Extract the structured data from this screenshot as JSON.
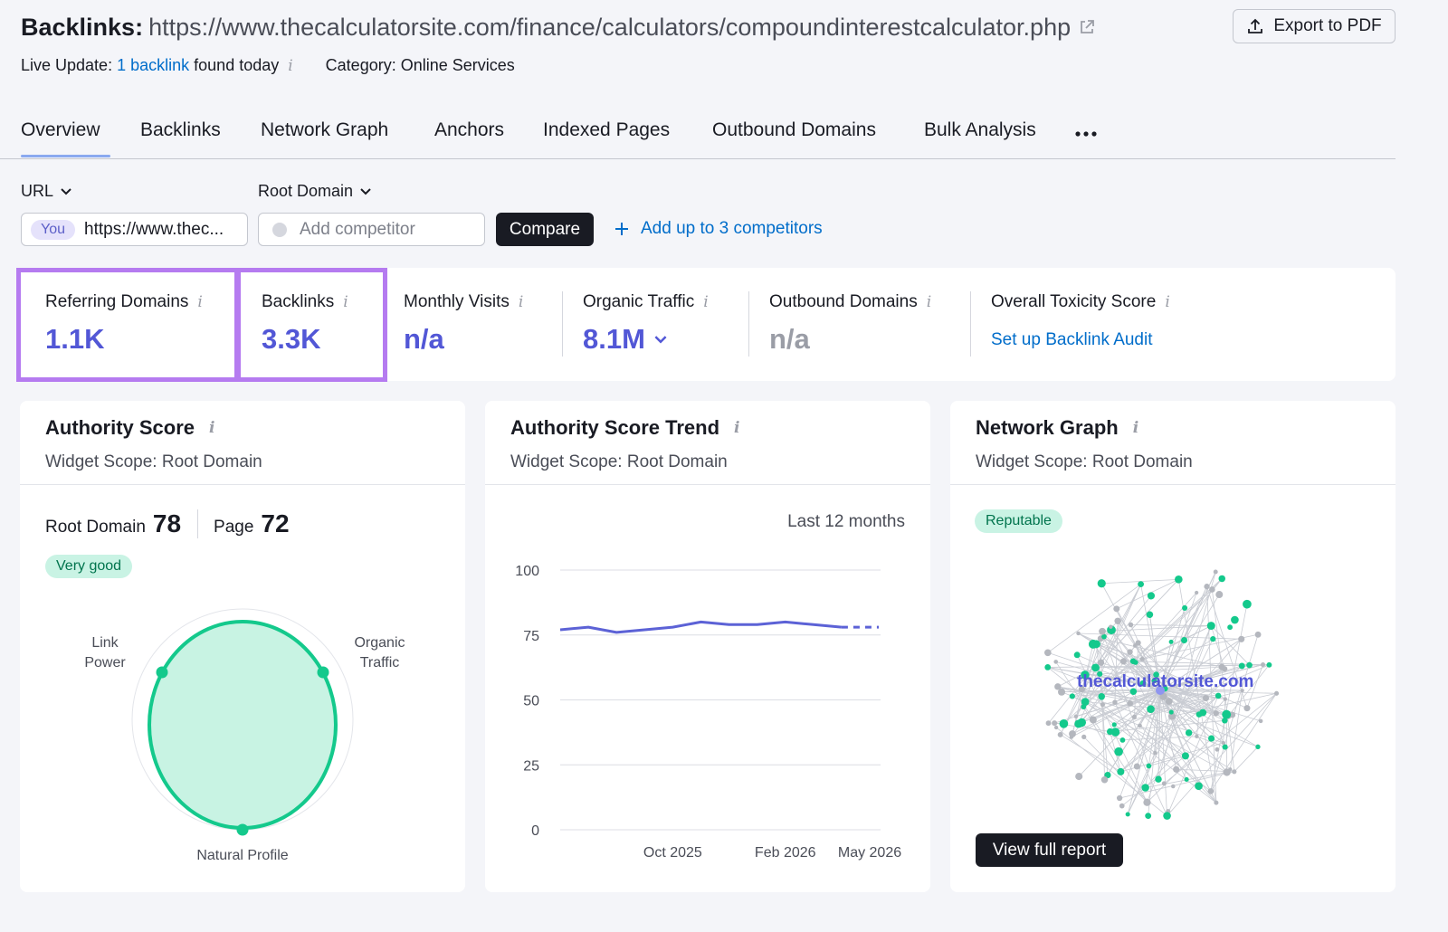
{
  "header": {
    "title_label": "Backlinks:",
    "url": "https://www.thecalculatorsite.com/finance/calculators/compoundinterestcalculator.php",
    "export_label": "Export to PDF",
    "live_update_prefix": "Live Update:",
    "live_update_link": "1 backlink",
    "live_update_suffix": "found today",
    "category": "Category: Online Services"
  },
  "tabs": [
    "Overview",
    "Backlinks",
    "Network Graph",
    "Anchors",
    "Indexed Pages",
    "Outbound Domains",
    "Bulk Analysis"
  ],
  "active_tab": "Overview",
  "filters": {
    "url_dropdown": "URL",
    "root_domain_dropdown": "Root Domain",
    "you_badge": "You",
    "your_url": "https://www.thec...",
    "competitor_placeholder": "Add competitor",
    "compare_label": "Compare",
    "add_competitors_label": "Add up to 3 competitors"
  },
  "metrics": {
    "referring_domains": {
      "label": "Referring Domains",
      "value": "1.1K"
    },
    "backlinks": {
      "label": "Backlinks",
      "value": "3.3K"
    },
    "monthly_visits": {
      "label": "Monthly Visits",
      "value": "n/a"
    },
    "organic_traffic": {
      "label": "Organic Traffic",
      "value": "8.1M"
    },
    "outbound_domains": {
      "label": "Outbound Domains",
      "value": "n/a"
    },
    "toxicity": {
      "label": "Overall Toxicity Score",
      "link": "Set up Backlink Audit"
    }
  },
  "authority_widget": {
    "title": "Authority Score",
    "scope": "Widget Scope: Root Domain",
    "root_domain_label": "Root Domain",
    "root_domain_value": "78",
    "page_label": "Page",
    "page_value": "72",
    "rating_badge": "Very good",
    "radar_labels": {
      "link_power": [
        "Link",
        "Power"
      ],
      "organic_traffic": [
        "Organic",
        "Traffic"
      ],
      "natural_profile": "Natural Profile"
    }
  },
  "trend_widget": {
    "title": "Authority Score Trend",
    "scope": "Widget Scope: Root Domain",
    "period": "Last 12 months"
  },
  "network_widget": {
    "title": "Network Graph",
    "scope": "Widget Scope: Root Domain",
    "badge": "Reputable",
    "center_label": "thecalculatorsite.com",
    "button": "View full report"
  },
  "colors": {
    "accent": "#5257d6",
    "link": "#006dca",
    "highlight": "#b57bf0",
    "green": "#14c98c"
  },
  "chart_data": {
    "type": "line",
    "x": [
      "Jun 2025",
      "Jul 2025",
      "Aug 2025",
      "Sep 2025",
      "Oct 2025",
      "Nov 2025",
      "Dec 2025",
      "Jan 2026",
      "Feb 2026",
      "Mar 2026",
      "Apr 2026",
      "May 2026"
    ],
    "series": [
      {
        "values": [
          77,
          78,
          76,
          77,
          78,
          80,
          79,
          79,
          80,
          79,
          78,
          78
        ]
      }
    ],
    "xticks": [
      "Oct 2025",
      "Feb 2026",
      "May 2026"
    ],
    "yticks": [
      0,
      25,
      50,
      75,
      100
    ],
    "ylim": [
      0,
      100
    ],
    "grid": true
  }
}
